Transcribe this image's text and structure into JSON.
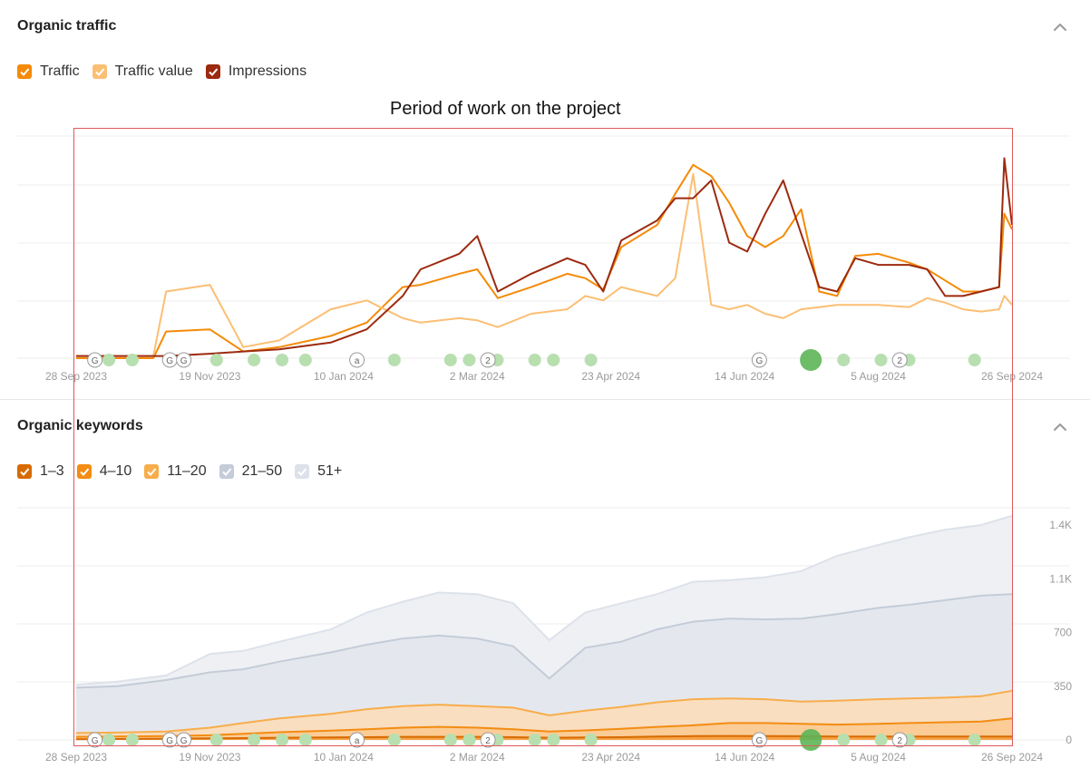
{
  "traffic_section": {
    "title": "Organic traffic",
    "legend": [
      {
        "label": "Traffic",
        "color": "#f58a07"
      },
      {
        "label": "Traffic value",
        "color": "#fbbf74"
      },
      {
        "label": "Impressions",
        "color": "#9c2a0f"
      }
    ]
  },
  "keywords_section": {
    "title": "Organic keywords",
    "legend": [
      {
        "label": "1–3",
        "color": "#d76b00"
      },
      {
        "label": "4–10",
        "color": "#f38c12"
      },
      {
        "label": "11–20",
        "color": "#f8ad4b"
      },
      {
        "label": "21–50",
        "color": "#c4ccd8"
      },
      {
        "label": "51+",
        "color": "#dde2ea"
      }
    ]
  },
  "annotation": "Period of work on the project",
  "chart_data": [
    {
      "type": "line",
      "title": "Organic traffic",
      "x_ticks": [
        "28 Sep 2023",
        "19 Nov 2023",
        "10 Jan 2024",
        "2 Mar 2024",
        "23 Apr 2024",
        "14 Jun 2024",
        "5 Aug 2024",
        "26 Sep 2024"
      ],
      "x": [
        "2023-09-28",
        "2023-10-14",
        "2023-10-28",
        "2023-11-02",
        "2023-11-19",
        "2023-12-02",
        "2023-12-16",
        "2024-01-05",
        "2024-01-19",
        "2024-02-02",
        "2024-02-09",
        "2024-02-24",
        "2024-03-02",
        "2024-03-10",
        "2024-03-23",
        "2024-04-06",
        "2024-04-13",
        "2024-04-20",
        "2024-04-27",
        "2024-05-11",
        "2024-05-18",
        "2024-05-25",
        "2024-06-01",
        "2024-06-08",
        "2024-06-15",
        "2024-06-22",
        "2024-06-29",
        "2024-07-06",
        "2024-07-13",
        "2024-07-20",
        "2024-07-27",
        "2024-08-05",
        "2024-08-17",
        "2024-08-24",
        "2024-08-31",
        "2024-09-07",
        "2024-09-14",
        "2024-09-21",
        "2024-09-23",
        "2024-09-26"
      ],
      "y_unit": "relative (axis unlabeled, 0-100)",
      "series": [
        {
          "name": "Traffic",
          "color": "#f58a07",
          "values": [
            0,
            0,
            0,
            12,
            13,
            3,
            5,
            10,
            16,
            32,
            33,
            38,
            40,
            27,
            32,
            38,
            36,
            31,
            50,
            60,
            74,
            87,
            82,
            70,
            55,
            50,
            55,
            67,
            30,
            28,
            46,
            47,
            43,
            40,
            35,
            30,
            30,
            32,
            65,
            58
          ]
        },
        {
          "name": "Traffic value",
          "color": "#fbbf74",
          "values": [
            1,
            1,
            1,
            30,
            33,
            5,
            8,
            22,
            26,
            18,
            16,
            18,
            17,
            14,
            20,
            22,
            28,
            26,
            32,
            28,
            36,
            83,
            24,
            22,
            24,
            20,
            18,
            22,
            23,
            24,
            24,
            24,
            23,
            27,
            25,
            22,
            21,
            22,
            28,
            24
          ]
        },
        {
          "name": "Impressions",
          "color": "#9c2a0f",
          "values": [
            1,
            1,
            1,
            1,
            2,
            3,
            4,
            7,
            13,
            28,
            40,
            47,
            55,
            30,
            38,
            45,
            42,
            30,
            53,
            62,
            72,
            72,
            80,
            52,
            48,
            65,
            80,
            56,
            32,
            30,
            45,
            42,
            42,
            40,
            28,
            28,
            30,
            32,
            90,
            60
          ]
        }
      ],
      "markers": [
        "G",
        "G",
        "G",
        "a",
        "2",
        "G",
        "2"
      ]
    },
    {
      "type": "area",
      "title": "Organic keywords",
      "x_ticks": [
        "28 Sep 2023",
        "19 Nov 2023",
        "10 Jan 2024",
        "2 Mar 2024",
        "23 Apr 2024",
        "14 Jun 2024",
        "5 Aug 2024",
        "26 Sep 2024"
      ],
      "y_ticks": [
        "0",
        "350",
        "700",
        "1.1K",
        "1.4K"
      ],
      "y_tick_values": [
        0,
        350,
        700,
        1050,
        1400
      ],
      "ylim": [
        0,
        1400
      ],
      "x": [
        "2023-09-28",
        "2023-10-14",
        "2023-11-02",
        "2023-11-19",
        "2023-12-02",
        "2023-12-16",
        "2024-01-05",
        "2024-01-19",
        "2024-02-02",
        "2024-02-16",
        "2024-03-02",
        "2024-03-16",
        "2024-03-30",
        "2024-04-13",
        "2024-04-27",
        "2024-05-11",
        "2024-05-25",
        "2024-06-08",
        "2024-06-22",
        "2024-07-06",
        "2024-07-20",
        "2024-08-05",
        "2024-08-17",
        "2024-08-31",
        "2024-09-14",
        "2024-09-26"
      ],
      "series": [
        {
          "name": "1–3",
          "color": "#d76b00",
          "values": [
            5,
            6,
            8,
            10,
            12,
            14,
            16,
            18,
            20,
            20,
            20,
            18,
            14,
            16,
            18,
            22,
            25,
            26,
            25,
            24,
            22,
            22,
            22,
            22,
            22,
            22
          ]
        },
        {
          "name": "4–10",
          "color": "#f38c12",
          "values": [
            20,
            22,
            25,
            30,
            40,
            50,
            60,
            70,
            80,
            85,
            80,
            70,
            55,
            62,
            72,
            85,
            95,
            110,
            110,
            105,
            100,
            105,
            110,
            115,
            120,
            140
          ]
        },
        {
          "name": "11–20",
          "color": "#f8ad4b",
          "values": [
            45,
            48,
            55,
            80,
            110,
            140,
            170,
            200,
            220,
            230,
            220,
            210,
            160,
            190,
            215,
            245,
            265,
            270,
            265,
            250,
            255,
            265,
            270,
            275,
            285,
            320
          ]
        },
        {
          "name": "21–50",
          "color": "#c4ccd8",
          "values": [
            340,
            350,
            390,
            440,
            460,
            510,
            570,
            620,
            660,
            680,
            660,
            610,
            400,
            600,
            640,
            720,
            770,
            790,
            785,
            790,
            820,
            860,
            880,
            910,
            940,
            950
          ]
        },
        {
          "name": "51+",
          "color": "#dde2ea",
          "values": [
            360,
            380,
            420,
            560,
            580,
            640,
            720,
            830,
            900,
            960,
            950,
            890,
            650,
            830,
            890,
            950,
            1030,
            1040,
            1060,
            1100,
            1200,
            1270,
            1320,
            1370,
            1400,
            1460
          ]
        }
      ]
    }
  ]
}
